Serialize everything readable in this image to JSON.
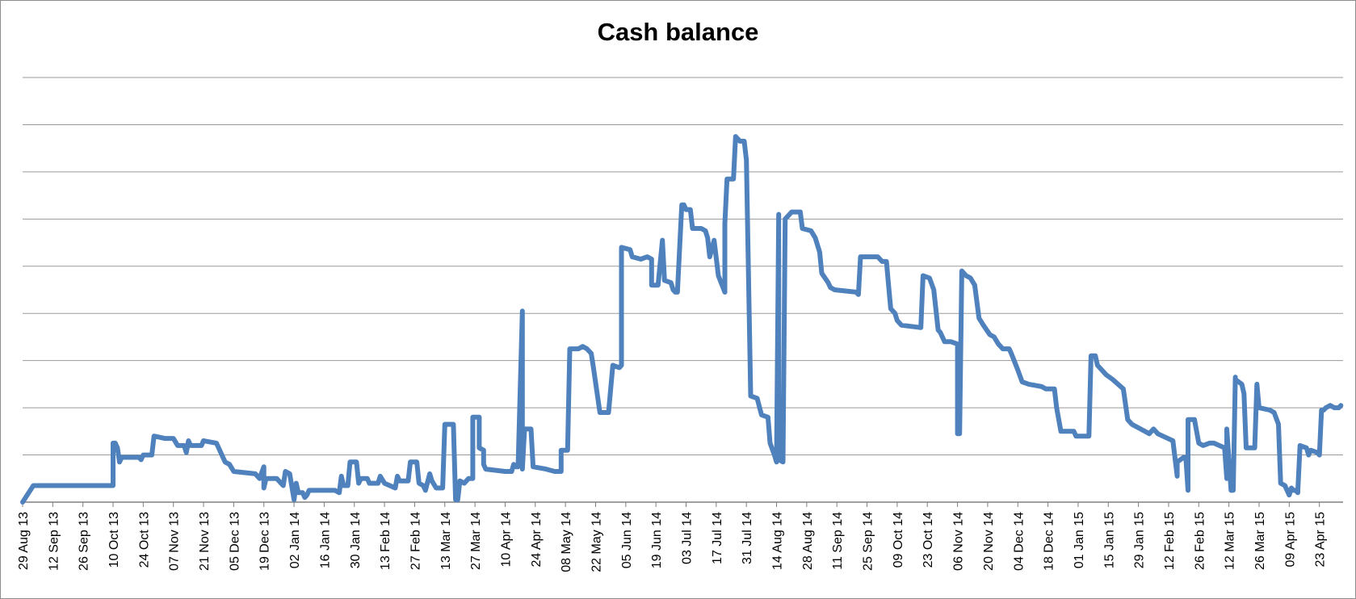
{
  "chart_data": {
    "type": "line",
    "title": "Cash balance",
    "xlabel": "",
    "ylabel": "",
    "grid": true,
    "legend": "none",
    "y_axis_labels_visible": false,
    "x_tick_labels": [
      "29 Aug 13",
      "12 Sep 13",
      "26 Sep 13",
      "10 Oct 13",
      "24 Oct 13",
      "07 Nov 13",
      "21 Nov 13",
      "05 Dec 13",
      "19 Dec 13",
      "02 Jan 14",
      "16 Jan 14",
      "30 Jan 14",
      "13 Feb 14",
      "27 Feb 14",
      "13 Mar 14",
      "27 Mar 14",
      "10 Apr 14",
      "24 Apr 14",
      "08 May 14",
      "22 May 14",
      "05 Jun 14",
      "19 Jun 14",
      "03 Jul 14",
      "17 Jul 14",
      "31 Jul 14",
      "14 Aug 14",
      "28 Aug 14",
      "11 Sep 14",
      "25 Sep 14",
      "09 Oct 14",
      "23 Oct 14",
      "06 Nov 14",
      "20 Nov 14",
      "04 Dec 14",
      "18 Dec 14",
      "01 Jan 15",
      "15 Jan 15",
      "29 Jan 15",
      "12 Feb 15",
      "26 Feb 15",
      "12 Mar 15",
      "26 Mar 15",
      "09 Apr 15",
      "23 Apr 15"
    ],
    "x_range": [
      "2013-08-29",
      "2015-05-04"
    ],
    "y_range": [
      0,
      9
    ],
    "y_unit_note": "relative gridline units (no value labels shown)",
    "series": [
      {
        "color": "#4f81bd",
        "points": [
          [
            "2013-08-29",
            0.0
          ],
          [
            "2013-09-03",
            0.35
          ],
          [
            "2013-10-10",
            0.35
          ],
          [
            "2013-10-10",
            1.25
          ],
          [
            "2013-10-11",
            1.25
          ],
          [
            "2013-10-12",
            1.15
          ],
          [
            "2013-10-13",
            0.85
          ],
          [
            "2013-10-14",
            0.95
          ],
          [
            "2013-10-22",
            0.95
          ],
          [
            "2013-10-23",
            0.9
          ],
          [
            "2013-10-24",
            1.0
          ],
          [
            "2013-10-28",
            1.0
          ],
          [
            "2013-10-29",
            1.4
          ],
          [
            "2013-11-03",
            1.35
          ],
          [
            "2013-11-07",
            1.35
          ],
          [
            "2013-11-09",
            1.2
          ],
          [
            "2013-11-12",
            1.2
          ],
          [
            "2013-11-13",
            1.05
          ],
          [
            "2013-11-14",
            1.3
          ],
          [
            "2013-11-15",
            1.2
          ],
          [
            "2013-11-20",
            1.2
          ],
          [
            "2013-11-21",
            1.3
          ],
          [
            "2013-11-27",
            1.25
          ],
          [
            "2013-12-01",
            0.85
          ],
          [
            "2013-12-03",
            0.8
          ],
          [
            "2013-12-05",
            0.65
          ],
          [
            "2013-12-15",
            0.6
          ],
          [
            "2013-12-17",
            0.5
          ],
          [
            "2013-12-19",
            0.75
          ],
          [
            "2013-12-19",
            0.3
          ],
          [
            "2013-12-20",
            0.5
          ],
          [
            "2013-12-25",
            0.5
          ],
          [
            "2013-12-28",
            0.35
          ],
          [
            "2013-12-29",
            0.65
          ],
          [
            "2013-12-31",
            0.6
          ],
          [
            "2014-01-02",
            0.05
          ],
          [
            "2014-01-03",
            0.4
          ],
          [
            "2014-01-04",
            0.2
          ],
          [
            "2014-01-06",
            0.2
          ],
          [
            "2014-01-07",
            0.1
          ],
          [
            "2014-01-08",
            0.15
          ],
          [
            "2014-01-09",
            0.25
          ],
          [
            "2014-01-20",
            0.25
          ],
          [
            "2014-01-21",
            0.25
          ],
          [
            "2014-01-23",
            0.2
          ],
          [
            "2014-01-24",
            0.55
          ],
          [
            "2014-01-25",
            0.35
          ],
          [
            "2014-01-27",
            0.35
          ],
          [
            "2014-01-28",
            0.85
          ],
          [
            "2014-01-31",
            0.85
          ],
          [
            "2014-02-01",
            0.4
          ],
          [
            "2014-02-02",
            0.5
          ],
          [
            "2014-02-05",
            0.5
          ],
          [
            "2014-02-06",
            0.4
          ],
          [
            "2014-02-10",
            0.4
          ],
          [
            "2014-02-11",
            0.55
          ],
          [
            "2014-02-13",
            0.4
          ],
          [
            "2014-02-18",
            0.3
          ],
          [
            "2014-02-19",
            0.55
          ],
          [
            "2014-02-20",
            0.45
          ],
          [
            "2014-02-24",
            0.45
          ],
          [
            "2014-02-25",
            0.85
          ],
          [
            "2014-02-28",
            0.85
          ],
          [
            "2014-03-01",
            0.4
          ],
          [
            "2014-03-03",
            0.35
          ],
          [
            "2014-03-04",
            0.25
          ],
          [
            "2014-03-06",
            0.6
          ],
          [
            "2014-03-07",
            0.45
          ],
          [
            "2014-03-09",
            0.3
          ],
          [
            "2014-03-12",
            0.3
          ],
          [
            "2014-03-13",
            1.65
          ],
          [
            "2014-03-17",
            1.65
          ],
          [
            "2014-03-18",
            0.05
          ],
          [
            "2014-03-19",
            0.05
          ],
          [
            "2014-03-20",
            0.45
          ],
          [
            "2014-03-22",
            0.4
          ],
          [
            "2014-03-24",
            0.5
          ],
          [
            "2014-03-26",
            0.5
          ],
          [
            "2014-03-26",
            1.8
          ],
          [
            "2014-03-29",
            1.8
          ],
          [
            "2014-03-29",
            1.15
          ],
          [
            "2014-03-31",
            1.1
          ],
          [
            "2014-03-31",
            0.8
          ],
          [
            "2014-04-01",
            0.7
          ],
          [
            "2014-04-10",
            0.65
          ],
          [
            "2014-04-13",
            0.65
          ],
          [
            "2014-04-14",
            0.8
          ],
          [
            "2014-04-15",
            0.75
          ],
          [
            "2014-04-16",
            0.75
          ],
          [
            "2014-04-18",
            4.05
          ],
          [
            "2014-04-18",
            0.7
          ],
          [
            "2014-04-19",
            1.55
          ],
          [
            "2014-04-22",
            1.55
          ],
          [
            "2014-04-23",
            0.75
          ],
          [
            "2014-04-29",
            0.7
          ],
          [
            "2014-05-03",
            0.65
          ],
          [
            "2014-05-06",
            0.65
          ],
          [
            "2014-05-06",
            1.1
          ],
          [
            "2014-05-09",
            1.1
          ],
          [
            "2014-05-10",
            3.25
          ],
          [
            "2014-05-14",
            3.25
          ],
          [
            "2014-05-16",
            3.3
          ],
          [
            "2014-05-18",
            3.25
          ],
          [
            "2014-05-20",
            3.15
          ],
          [
            "2014-05-21",
            2.85
          ],
          [
            "2014-05-24",
            1.9
          ],
          [
            "2014-05-28",
            1.9
          ],
          [
            "2014-05-30",
            2.9
          ],
          [
            "2014-06-02",
            2.85
          ],
          [
            "2014-06-03",
            2.9
          ],
          [
            "2014-06-03",
            5.4
          ],
          [
            "2014-06-07",
            5.35
          ],
          [
            "2014-06-08",
            5.2
          ],
          [
            "2014-06-12",
            5.15
          ],
          [
            "2014-06-15",
            5.2
          ],
          [
            "2014-06-17",
            5.15
          ],
          [
            "2014-06-17",
            4.6
          ],
          [
            "2014-06-20",
            4.6
          ],
          [
            "2014-06-22",
            5.55
          ],
          [
            "2014-06-23",
            4.7
          ],
          [
            "2014-06-26",
            4.65
          ],
          [
            "2014-06-27",
            4.5
          ],
          [
            "2014-06-28",
            4.45
          ],
          [
            "2014-06-29",
            4.45
          ],
          [
            "2014-07-01",
            6.3
          ],
          [
            "2014-07-02",
            6.3
          ],
          [
            "2014-07-03",
            6.2
          ],
          [
            "2014-07-05",
            6.2
          ],
          [
            "2014-07-06",
            5.8
          ],
          [
            "2014-07-10",
            5.8
          ],
          [
            "2014-07-12",
            5.75
          ],
          [
            "2014-07-13",
            5.6
          ],
          [
            "2014-07-14",
            5.2
          ],
          [
            "2014-07-16",
            5.55
          ],
          [
            "2014-07-18",
            4.8
          ],
          [
            "2014-07-21",
            4.45
          ],
          [
            "2014-07-21",
            5.9
          ],
          [
            "2014-07-22",
            6.85
          ],
          [
            "2014-07-25",
            6.85
          ],
          [
            "2014-07-26",
            7.75
          ],
          [
            "2014-07-28",
            7.65
          ],
          [
            "2014-07-30",
            7.65
          ],
          [
            "2014-07-31",
            7.25
          ],
          [
            "2014-08-02",
            2.25
          ],
          [
            "2014-08-05",
            2.2
          ],
          [
            "2014-08-07",
            1.85
          ],
          [
            "2014-08-10",
            1.8
          ],
          [
            "2014-08-11",
            1.25
          ],
          [
            "2014-08-13",
            1.0
          ],
          [
            "2014-08-14",
            0.85
          ],
          [
            "2014-08-15",
            6.1
          ],
          [
            "2014-08-15",
            0.9
          ],
          [
            "2014-08-17",
            0.85
          ],
          [
            "2014-08-18",
            6.0
          ],
          [
            "2014-08-19",
            6.05
          ],
          [
            "2014-08-21",
            6.15
          ],
          [
            "2014-08-25",
            6.15
          ],
          [
            "2014-08-26",
            5.8
          ],
          [
            "2014-08-30",
            5.75
          ],
          [
            "2014-09-01",
            5.6
          ],
          [
            "2014-09-03",
            5.3
          ],
          [
            "2014-09-04",
            4.85
          ],
          [
            "2014-09-07",
            4.65
          ],
          [
            "2014-09-08",
            4.55
          ],
          [
            "2014-09-10",
            4.5
          ],
          [
            "2014-09-20",
            4.45
          ],
          [
            "2014-09-21",
            4.4
          ],
          [
            "2014-09-22",
            5.2
          ],
          [
            "2014-09-30",
            5.2
          ],
          [
            "2014-10-02",
            5.1
          ],
          [
            "2014-10-04",
            5.1
          ],
          [
            "2014-10-05",
            4.6
          ],
          [
            "2014-10-06",
            4.1
          ],
          [
            "2014-10-08",
            4.0
          ],
          [
            "2014-10-09",
            3.85
          ],
          [
            "2014-10-11",
            3.75
          ],
          [
            "2014-10-20",
            3.7
          ],
          [
            "2014-10-21",
            4.8
          ],
          [
            "2014-10-24",
            4.75
          ],
          [
            "2014-10-26",
            4.5
          ],
          [
            "2014-10-28",
            3.65
          ],
          [
            "2014-10-29",
            3.6
          ],
          [
            "2014-10-31",
            3.4
          ],
          [
            "2014-11-03",
            3.4
          ],
          [
            "2014-11-06",
            3.35
          ],
          [
            "2014-11-06",
            1.45
          ],
          [
            "2014-11-07",
            1.45
          ],
          [
            "2014-11-08",
            4.9
          ],
          [
            "2014-11-10",
            4.8
          ],
          [
            "2014-11-12",
            4.75
          ],
          [
            "2014-11-14",
            4.6
          ],
          [
            "2014-11-16",
            3.9
          ],
          [
            "2014-11-18",
            3.75
          ],
          [
            "2014-11-21",
            3.55
          ],
          [
            "2014-11-23",
            3.5
          ],
          [
            "2014-11-25",
            3.35
          ],
          [
            "2014-11-26",
            3.3
          ],
          [
            "2014-11-27",
            3.25
          ],
          [
            "2014-11-30",
            3.25
          ],
          [
            "2014-12-01",
            3.15
          ],
          [
            "2014-12-04",
            2.8
          ],
          [
            "2014-12-06",
            2.55
          ],
          [
            "2014-12-09",
            2.5
          ],
          [
            "2014-12-15",
            2.45
          ],
          [
            "2014-12-17",
            2.4
          ],
          [
            "2014-12-21",
            2.4
          ],
          [
            "2014-12-22",
            2.0
          ],
          [
            "2014-12-24",
            1.5
          ],
          [
            "2014-12-30",
            1.5
          ],
          [
            "2014-12-31",
            1.4
          ],
          [
            "2015-01-06",
            1.4
          ],
          [
            "2015-01-07",
            3.1
          ],
          [
            "2015-01-09",
            3.1
          ],
          [
            "2015-01-10",
            2.9
          ],
          [
            "2015-01-12",
            2.8
          ],
          [
            "2015-01-14",
            2.7
          ],
          [
            "2015-01-17",
            2.6
          ],
          [
            "2015-01-22",
            2.4
          ],
          [
            "2015-01-24",
            1.75
          ],
          [
            "2015-01-26",
            1.65
          ],
          [
            "2015-01-28",
            1.6
          ],
          [
            "2015-02-01",
            1.5
          ],
          [
            "2015-02-03",
            1.45
          ],
          [
            "2015-02-05",
            1.55
          ],
          [
            "2015-02-07",
            1.45
          ],
          [
            "2015-02-14",
            1.3
          ],
          [
            "2015-02-16",
            0.55
          ],
          [
            "2015-02-16",
            0.85
          ],
          [
            "2015-02-19",
            0.95
          ],
          [
            "2015-02-20",
            0.95
          ],
          [
            "2015-02-21",
            0.25
          ],
          [
            "2015-02-21",
            1.75
          ],
          [
            "2015-02-24",
            1.75
          ],
          [
            "2015-02-26",
            1.25
          ],
          [
            "2015-02-28",
            1.2
          ],
          [
            "2015-03-03",
            1.25
          ],
          [
            "2015-03-05",
            1.25
          ],
          [
            "2015-03-10",
            1.15
          ],
          [
            "2015-03-11",
            0.5
          ],
          [
            "2015-03-11",
            1.55
          ],
          [
            "2015-03-13",
            0.25
          ],
          [
            "2015-03-14",
            0.25
          ],
          [
            "2015-03-15",
            2.65
          ],
          [
            "2015-03-15",
            2.6
          ],
          [
            "2015-03-18",
            2.5
          ],
          [
            "2015-03-19",
            2.3
          ],
          [
            "2015-03-20",
            1.15
          ],
          [
            "2015-03-24",
            1.15
          ],
          [
            "2015-03-25",
            2.5
          ],
          [
            "2015-03-26",
            2.0
          ],
          [
            "2015-03-31",
            1.95
          ],
          [
            "2015-04-02",
            1.9
          ],
          [
            "2015-04-04",
            1.65
          ],
          [
            "2015-04-05",
            0.4
          ],
          [
            "2015-04-07",
            0.35
          ],
          [
            "2015-04-09",
            0.15
          ],
          [
            "2015-04-10",
            0.3
          ],
          [
            "2015-04-11",
            0.25
          ],
          [
            "2015-04-12",
            0.25
          ],
          [
            "2015-04-13",
            0.2
          ],
          [
            "2015-04-13",
            0.25
          ],
          [
            "2015-04-14",
            1.2
          ],
          [
            "2015-04-17",
            1.15
          ],
          [
            "2015-04-18",
            1.0
          ],
          [
            "2015-04-19",
            1.1
          ],
          [
            "2015-04-22",
            1.05
          ],
          [
            "2015-04-23",
            1.0
          ],
          [
            "2015-04-24",
            1.95
          ],
          [
            "2015-04-25",
            1.95
          ],
          [
            "2015-04-26",
            2.0
          ],
          [
            "2015-04-28",
            2.05
          ],
          [
            "2015-04-30",
            2.0
          ],
          [
            "2015-05-02",
            2.0
          ],
          [
            "2015-05-03",
            2.05
          ]
        ]
      }
    ]
  }
}
